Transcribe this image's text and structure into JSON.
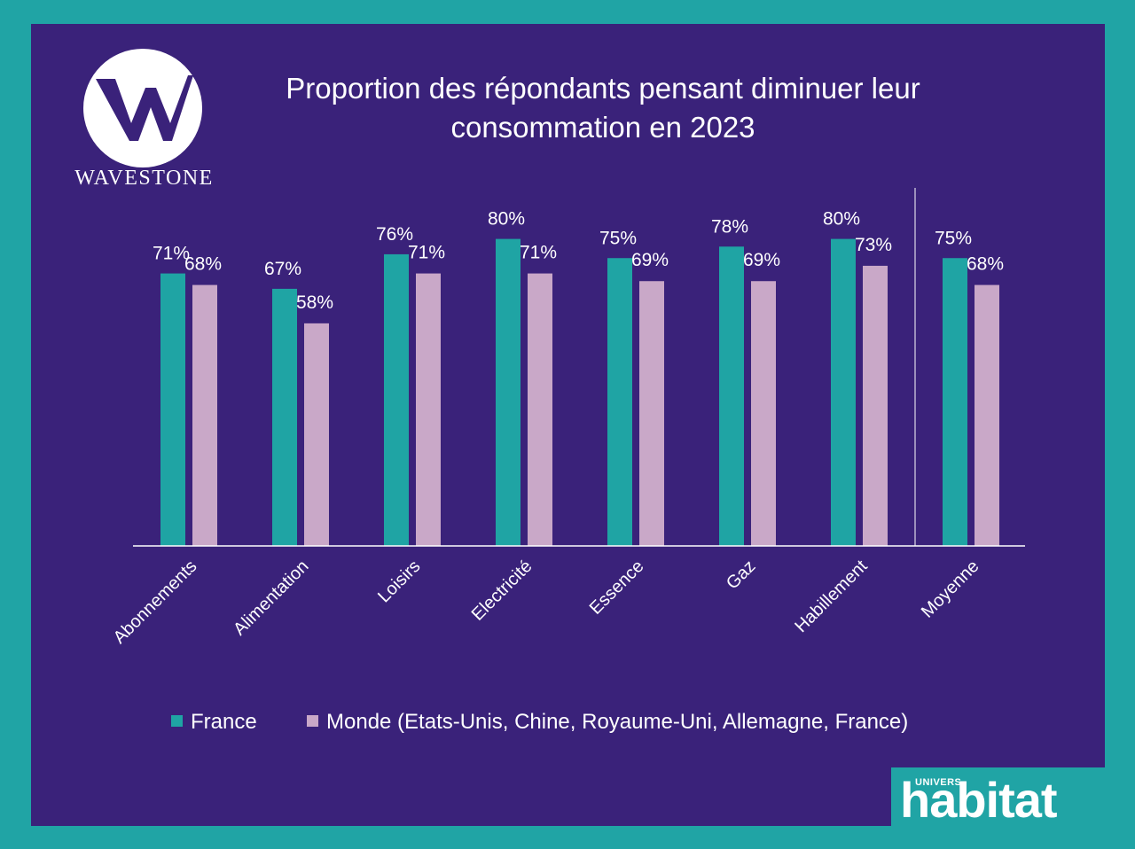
{
  "logo": {
    "name": "WAVESTONE",
    "icon": "wavestone-w-icon"
  },
  "title": {
    "line1": "Proportion des répondants pensant diminuer leur",
    "line2": "consommation en 2023"
  },
  "badge": {
    "top": "UNIVERS",
    "word": "habitat"
  },
  "colors": {
    "background": "#3a227a",
    "frame": "#20a4a5",
    "france": "#1fa4a4",
    "monde": "#c9a8c8",
    "text": "#ffffff"
  },
  "chart_data": {
    "type": "bar",
    "title": "Proportion des répondants pensant diminuer leur consommation en 2023",
    "categories": [
      "Abonnements",
      "Alimentation",
      "Loisirs",
      "Electricité",
      "Essence",
      "Gaz",
      "Habillement",
      "Moyenne"
    ],
    "series": [
      {
        "name": "France",
        "values": [
          71,
          67,
          76,
          80,
          75,
          78,
          80,
          75
        ],
        "labels": [
          "71%",
          "67%",
          "76%",
          "80%",
          "75%",
          "78%",
          "80%",
          "75%"
        ]
      },
      {
        "name": "Monde (Etats-Unis, Chine, Royaume-Uni, Allemagne, France)",
        "values": [
          68,
          58,
          71,
          71,
          69,
          69,
          73,
          68
        ],
        "labels": [
          "68%",
          "58%",
          "71%",
          "71%",
          "69%",
          "69%",
          "73%",
          "68%"
        ]
      }
    ],
    "ylim": [
      0,
      100
    ],
    "grid": false,
    "legend": "bottom",
    "separator_before": "Moyenne"
  }
}
